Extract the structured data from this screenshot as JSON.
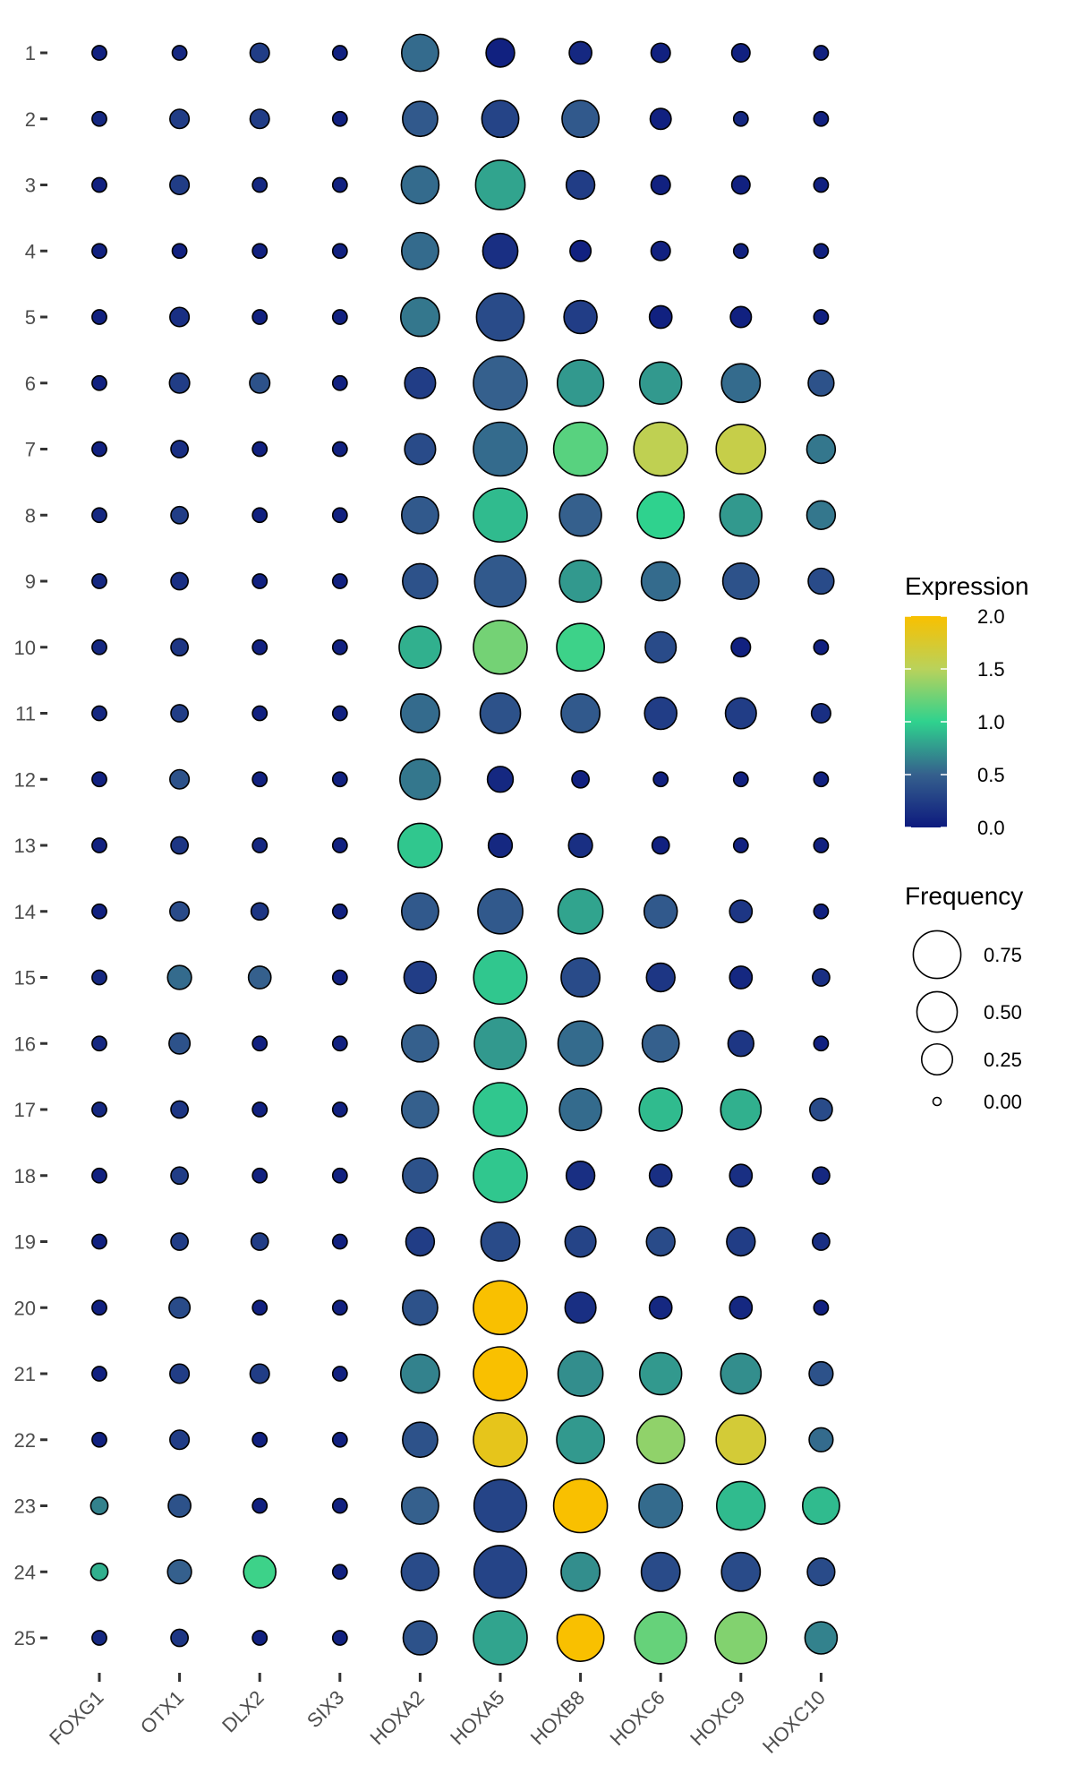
{
  "chart_data": {
    "type": "dot",
    "genes": [
      "FOXG1",
      "OTX1",
      "DLX2",
      "SIX3",
      "HOXA2",
      "HOXA5",
      "HOXB8",
      "HOXC6",
      "HOXC9",
      "HOXC10"
    ],
    "clusters": [
      "1",
      "2",
      "3",
      "4",
      "5",
      "6",
      "7",
      "8",
      "9",
      "10",
      "11",
      "12",
      "13",
      "14",
      "15",
      "16",
      "17",
      "18",
      "19",
      "20",
      "21",
      "22",
      "23",
      "24",
      "25"
    ],
    "expression": [
      [
        0.05,
        0.1,
        0.25,
        0.05,
        0.55,
        0.05,
        0.1,
        0.05,
        0.05,
        0.05
      ],
      [
        0.1,
        0.25,
        0.25,
        0.05,
        0.45,
        0.3,
        0.45,
        0.05,
        0.1,
        0.05
      ],
      [
        0.05,
        0.25,
        0.1,
        0.05,
        0.55,
        0.8,
        0.25,
        0.05,
        0.05,
        0.05
      ],
      [
        0.05,
        0.05,
        0.05,
        0.05,
        0.55,
        0.15,
        0.05,
        0.05,
        0.05,
        0.05
      ],
      [
        0.05,
        0.15,
        0.05,
        0.05,
        0.6,
        0.35,
        0.25,
        0.05,
        0.05,
        0.05
      ],
      [
        0.05,
        0.25,
        0.4,
        0.05,
        0.25,
        0.5,
        0.75,
        0.75,
        0.55,
        0.4
      ],
      [
        0.05,
        0.15,
        0.05,
        0.05,
        0.35,
        0.55,
        1.15,
        1.55,
        1.6,
        0.6
      ],
      [
        0.1,
        0.25,
        0.05,
        0.05,
        0.45,
        0.9,
        0.5,
        1.0,
        0.75,
        0.6
      ],
      [
        0.1,
        0.15,
        0.05,
        0.05,
        0.4,
        0.45,
        0.75,
        0.55,
        0.4,
        0.35
      ],
      [
        0.1,
        0.2,
        0.05,
        0.05,
        0.85,
        1.25,
        1.05,
        0.35,
        0.05,
        0.05
      ],
      [
        0.1,
        0.25,
        0.05,
        0.05,
        0.55,
        0.4,
        0.45,
        0.25,
        0.25,
        0.15
      ],
      [
        0.05,
        0.4,
        0.05,
        0.05,
        0.6,
        0.1,
        0.05,
        0.05,
        0.05,
        0.05
      ],
      [
        0.05,
        0.2,
        0.1,
        0.05,
        0.95,
        0.1,
        0.15,
        0.05,
        0.05,
        0.05
      ],
      [
        0.05,
        0.35,
        0.2,
        0.05,
        0.45,
        0.45,
        0.8,
        0.45,
        0.2,
        0.05
      ],
      [
        0.1,
        0.55,
        0.5,
        0.05,
        0.25,
        0.95,
        0.35,
        0.2,
        0.1,
        0.15
      ],
      [
        0.1,
        0.4,
        0.05,
        0.05,
        0.5,
        0.75,
        0.55,
        0.5,
        0.2,
        0.05
      ],
      [
        0.1,
        0.2,
        0.05,
        0.05,
        0.5,
        0.95,
        0.55,
        0.9,
        0.85,
        0.35
      ],
      [
        0.05,
        0.25,
        0.05,
        0.05,
        0.4,
        0.95,
        0.15,
        0.15,
        0.15,
        0.1
      ],
      [
        0.05,
        0.25,
        0.25,
        0.05,
        0.25,
        0.35,
        0.3,
        0.35,
        0.25,
        0.15
      ],
      [
        0.05,
        0.35,
        0.05,
        0.05,
        0.4,
        2.0,
        0.15,
        0.1,
        0.1,
        0.05
      ],
      [
        0.05,
        0.25,
        0.25,
        0.05,
        0.65,
        2.0,
        0.7,
        0.75,
        0.7,
        0.4
      ],
      [
        0.05,
        0.25,
        0.05,
        0.05,
        0.4,
        1.85,
        0.75,
        1.35,
        1.7,
        0.55
      ],
      [
        0.65,
        0.4,
        0.05,
        0.05,
        0.5,
        0.3,
        2.0,
        0.55,
        0.9,
        0.9
      ],
      [
        0.85,
        0.5,
        1.05,
        0.05,
        0.35,
        0.3,
        0.7,
        0.35,
        0.35,
        0.35
      ],
      [
        0.1,
        0.2,
        0.05,
        0.05,
        0.4,
        0.8,
        2.0,
        1.2,
        1.3,
        0.65
      ]
    ],
    "frequency": [
      [
        0.02,
        0.02,
        0.06,
        0.02,
        0.4,
        0.2,
        0.1,
        0.06,
        0.05,
        0.02
      ],
      [
        0.02,
        0.06,
        0.06,
        0.02,
        0.35,
        0.4,
        0.4,
        0.08,
        0.02,
        0.02
      ],
      [
        0.02,
        0.06,
        0.02,
        0.02,
        0.42,
        0.82,
        0.2,
        0.06,
        0.05,
        0.02
      ],
      [
        0.02,
        0.02,
        0.02,
        0.02,
        0.4,
        0.35,
        0.08,
        0.06,
        0.02,
        0.02
      ],
      [
        0.02,
        0.06,
        0.02,
        0.02,
        0.45,
        0.75,
        0.3,
        0.1,
        0.08,
        0.02
      ],
      [
        0.02,
        0.07,
        0.07,
        0.02,
        0.25,
        1.0,
        0.7,
        0.55,
        0.45,
        0.15
      ],
      [
        0.02,
        0.04,
        0.02,
        0.02,
        0.25,
        1.0,
        1.0,
        1.0,
        0.82,
        0.2
      ],
      [
        0.02,
        0.04,
        0.02,
        0.02,
        0.4,
        1.0,
        0.55,
        0.72,
        0.55,
        0.2
      ],
      [
        0.02,
        0.04,
        0.02,
        0.02,
        0.35,
        0.9,
        0.55,
        0.45,
        0.38,
        0.15
      ],
      [
        0.02,
        0.04,
        0.02,
        0.02,
        0.55,
        1.0,
        0.75,
        0.25,
        0.06,
        0.02
      ],
      [
        0.02,
        0.04,
        0.02,
        0.02,
        0.45,
        0.5,
        0.45,
        0.28,
        0.25,
        0.06
      ],
      [
        0.02,
        0.06,
        0.02,
        0.02,
        0.5,
        0.15,
        0.04,
        0.02,
        0.02,
        0.02
      ],
      [
        0.02,
        0.04,
        0.02,
        0.02,
        0.62,
        0.12,
        0.12,
        0.04,
        0.02,
        0.02
      ],
      [
        0.02,
        0.06,
        0.04,
        0.02,
        0.4,
        0.65,
        0.65,
        0.3,
        0.1,
        0.02
      ],
      [
        0.02,
        0.12,
        0.1,
        0.02,
        0.28,
        0.98,
        0.45,
        0.2,
        0.1,
        0.04
      ],
      [
        0.02,
        0.08,
        0.02,
        0.02,
        0.4,
        0.92,
        0.65,
        0.4,
        0.15,
        0.02
      ],
      [
        0.02,
        0.04,
        0.02,
        0.02,
        0.4,
        1.0,
        0.55,
        0.58,
        0.5,
        0.1
      ],
      [
        0.02,
        0.04,
        0.02,
        0.02,
        0.35,
        1.0,
        0.2,
        0.1,
        0.1,
        0.04
      ],
      [
        0.02,
        0.04,
        0.04,
        0.02,
        0.2,
        0.45,
        0.25,
        0.2,
        0.2,
        0.04
      ],
      [
        0.02,
        0.08,
        0.02,
        0.02,
        0.35,
        1.0,
        0.25,
        0.1,
        0.1,
        0.02
      ],
      [
        0.02,
        0.06,
        0.06,
        0.02,
        0.45,
        1.0,
        0.65,
        0.55,
        0.5,
        0.12
      ],
      [
        0.02,
        0.06,
        0.02,
        0.02,
        0.35,
        1.0,
        0.75,
        0.75,
        0.82,
        0.12
      ],
      [
        0.04,
        0.1,
        0.02,
        0.02,
        0.4,
        0.95,
        1.0,
        0.6,
        0.78,
        0.4
      ],
      [
        0.04,
        0.12,
        0.28,
        0.02,
        0.42,
        0.95,
        0.45,
        0.45,
        0.45,
        0.18
      ],
      [
        0.02,
        0.04,
        0.02,
        0.02,
        0.32,
        1.0,
        0.72,
        0.92,
        0.9,
        0.28
      ]
    ],
    "color_scale": {
      "title": "Expression",
      "min": 0,
      "max": 2,
      "ticks": [
        "0.0",
        "0.5",
        "1.0",
        "1.5",
        "2.0"
      ],
      "stops": [
        "#0d1a7e",
        "#35608d",
        "#2fd28e",
        "#b9d25b",
        "#f9c000"
      ]
    },
    "size_scale": {
      "title": "Frequency",
      "ticks": [
        {
          "label": "0.75",
          "value": 0.75
        },
        {
          "label": "0.50",
          "value": 0.5
        },
        {
          "label": "0.25",
          "value": 0.25
        },
        {
          "label": "0.00",
          "value": 0.0
        }
      ]
    },
    "grid": false
  }
}
